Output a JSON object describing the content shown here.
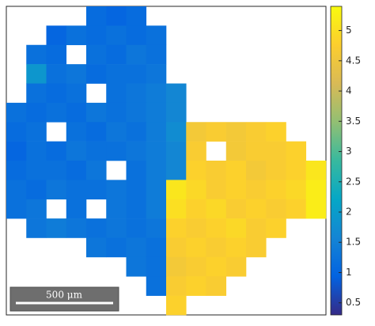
{
  "chart_data": {
    "type": "heatmap",
    "z": [
      [
        null,
        null,
        null,
        null,
        1.1,
        1.0,
        1.1,
        null,
        null,
        null,
        null,
        null,
        null,
        null,
        null,
        null
      ],
      [
        null,
        null,
        1.0,
        1.2,
        1.1,
        1.2,
        1.1,
        1.2,
        null,
        null,
        null,
        null,
        null,
        null,
        null,
        null
      ],
      [
        null,
        1.2,
        1.1,
        null,
        1.2,
        1.1,
        1.3,
        1.2,
        null,
        null,
        null,
        null,
        null,
        null,
        null,
        null
      ],
      [
        null,
        1.9,
        1.2,
        1.3,
        1.1,
        1.2,
        1.2,
        1.3,
        null,
        null,
        null,
        null,
        null,
        null,
        null,
        null
      ],
      [
        null,
        1.2,
        1.1,
        1.2,
        null,
        1.2,
        1.3,
        1.4,
        1.6,
        null,
        null,
        null,
        null,
        null,
        null,
        null
      ],
      [
        1.2,
        1.1,
        1.2,
        1.1,
        1.3,
        1.2,
        1.3,
        1.4,
        1.6,
        null,
        null,
        null,
        null,
        null,
        null,
        null
      ],
      [
        1.1,
        1.2,
        null,
        1.2,
        1.1,
        1.3,
        1.2,
        1.4,
        1.7,
        4.6,
        4.7,
        4.6,
        4.7,
        4.8,
        null,
        null
      ],
      [
        1.0,
        1.2,
        1.1,
        1.3,
        1.2,
        1.2,
        1.3,
        1.4,
        1.6,
        4.7,
        null,
        4.6,
        4.7,
        4.7,
        4.8,
        null
      ],
      [
        1.1,
        1.2,
        1.2,
        1.1,
        1.3,
        null,
        1.2,
        1.4,
        1.6,
        4.8,
        4.7,
        4.8,
        4.6,
        4.7,
        4.8,
        5.1
      ],
      [
        1.2,
        1.1,
        1.3,
        1.2,
        1.2,
        1.3,
        1.2,
        1.4,
        5.1,
        4.9,
        4.7,
        4.8,
        4.7,
        4.8,
        4.9,
        5.2
      ],
      [
        1.2,
        1.3,
        null,
        1.2,
        null,
        1.3,
        1.2,
        1.4,
        5.0,
        4.8,
        4.9,
        4.7,
        4.8,
        4.7,
        4.8,
        5.2
      ],
      [
        null,
        1.3,
        1.4,
        1.3,
        1.2,
        1.3,
        1.2,
        1.3,
        4.8,
        4.7,
        4.8,
        4.9,
        4.7,
        4.8,
        null,
        null
      ],
      [
        null,
        null,
        null,
        null,
        1.3,
        1.2,
        1.3,
        1.2,
        4.7,
        4.8,
        4.7,
        4.8,
        4.7,
        null,
        null,
        null
      ],
      [
        null,
        null,
        null,
        null,
        null,
        null,
        1.3,
        1.2,
        4.6,
        4.7,
        4.8,
        4.7,
        null,
        null,
        null,
        null
      ],
      [
        null,
        null,
        null,
        null,
        null,
        null,
        null,
        1.2,
        4.7,
        4.8,
        4.7,
        null,
        null,
        null,
        null,
        null
      ],
      [
        null,
        null,
        null,
        null,
        null,
        null,
        null,
        null,
        4.8,
        null,
        null,
        null,
        null,
        null,
        null,
        null
      ]
    ],
    "clim": [
      0.3,
      5.4
    ],
    "cticks": [
      0.5,
      1,
      1.5,
      2,
      2.5,
      3,
      3.5,
      4,
      4.5,
      5
    ],
    "scale_bar": "500 μm"
  }
}
